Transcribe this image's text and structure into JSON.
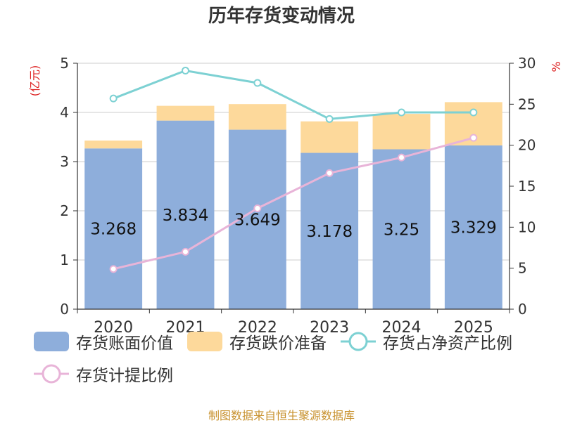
{
  "chart_data": {
    "type": "bar",
    "title": "历年存货变动情况",
    "ylabel_left": "(亿元)",
    "ylabel_right": "%",
    "categories": [
      "2020",
      "2021",
      "2022",
      "2023",
      "2024",
      "2025"
    ],
    "ylim_left": [
      0,
      5
    ],
    "yticks_left": [
      0,
      1,
      2,
      3,
      4,
      5
    ],
    "ylim_right": [
      0,
      30
    ],
    "yticks_right": [
      0,
      5,
      10,
      15,
      20,
      25,
      30
    ],
    "grid": true,
    "stacked": true,
    "legend_position": "bottom",
    "series": [
      {
        "name": "存货账面价值",
        "kind": "bar",
        "axis": "left",
        "color": "#8eaedb",
        "values": [
          3.268,
          3.834,
          3.649,
          3.178,
          3.25,
          3.329
        ],
        "labels": [
          "3.268",
          "3.834",
          "3.649",
          "3.178",
          "3.25",
          "3.329"
        ]
      },
      {
        "name": "存货跌价准备",
        "kind": "bar",
        "axis": "left",
        "color": "#fdd99b",
        "values": [
          0.16,
          0.3,
          0.52,
          0.64,
          0.72,
          0.88
        ]
      },
      {
        "name": "存货占净资产比例",
        "kind": "line",
        "axis": "right",
        "color": "#7dd1d3",
        "values": [
          25.7,
          29.1,
          27.6,
          23.2,
          24.0,
          24.0
        ]
      },
      {
        "name": "存货计提比例",
        "kind": "line",
        "axis": "right",
        "color": "#e8b4d8",
        "values": [
          4.9,
          7.0,
          12.3,
          16.6,
          18.5,
          20.9
        ]
      }
    ]
  },
  "source_note": "制图数据来自恒生聚源数据库"
}
